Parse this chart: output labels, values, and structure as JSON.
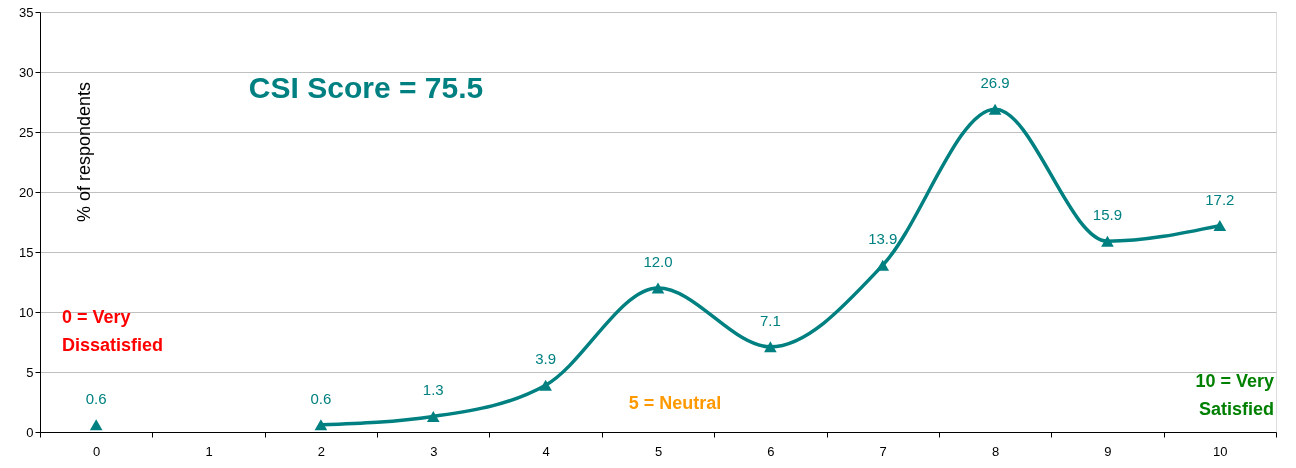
{
  "chart_data": {
    "type": "line",
    "ylabel": "% of respondents",
    "categories": [
      "0",
      "1",
      "2",
      "3",
      "4",
      "5",
      "6",
      "7",
      "8",
      "9",
      "10"
    ],
    "series": [
      {
        "color": "#008080",
        "values": [
          0.6,
          null,
          0.6,
          1.3,
          3.9,
          12.0,
          7.1,
          13.9,
          26.9,
          15.9,
          17.2
        ],
        "value_labels": [
          "0.6",
          null,
          "0.6",
          "1.3",
          "3.9",
          "12.0",
          "7.1",
          "13.9",
          "26.9",
          "15.9",
          "17.2"
        ]
      }
    ],
    "ylim": [
      0,
      35
    ],
    "yticks": [
      0,
      5,
      10,
      15,
      20,
      25,
      30,
      35
    ],
    "grid": "y",
    "marker": "triangle",
    "line_style": "solid",
    "annotations": [
      "CSI Score = 75.5",
      "0 = Very Dissatisfied",
      "5 = Neutral",
      "10 = Very Satisfied"
    ]
  }
}
